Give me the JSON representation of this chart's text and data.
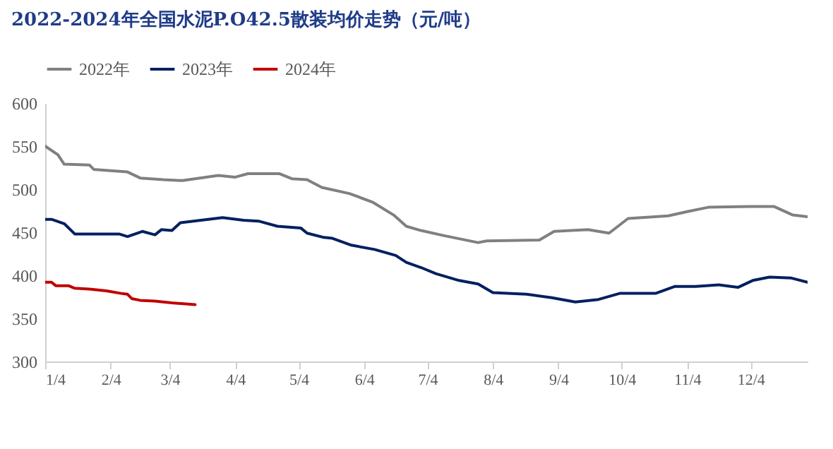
{
  "chart_data": {
    "type": "line",
    "title": "2022-2024年全国水泥P.O42.5散装均价走势（元/吨）",
    "ylim": [
      300,
      600
    ],
    "yticks": [
      300,
      350,
      400,
      450,
      500,
      550,
      600
    ],
    "xlim": [
      "--01-04",
      "--12-31"
    ],
    "xticks": [
      {
        "value": "--01-04",
        "label": "1/4"
      },
      {
        "value": "--02-04",
        "label": "2/4"
      },
      {
        "value": "--03-04",
        "label": "3/4"
      },
      {
        "value": "--04-04",
        "label": "4/4"
      },
      {
        "value": "--05-04",
        "label": "5/4"
      },
      {
        "value": "--06-04",
        "label": "6/4"
      },
      {
        "value": "--07-04",
        "label": "7/4"
      },
      {
        "value": "--08-04",
        "label": "8/4"
      },
      {
        "value": "--09-04",
        "label": "9/4"
      },
      {
        "value": "--10-04",
        "label": "10/4"
      },
      {
        "value": "--11-04",
        "label": "11/4"
      },
      {
        "value": "--12-04",
        "label": "12/4"
      }
    ],
    "grid": false,
    "legend": "top",
    "line_style": "solid",
    "marker": "none",
    "series": [
      {
        "name": "2022年",
        "color": "#808080",
        "x": [
          "--01-04",
          "--01-10",
          "--01-13",
          "--01-25",
          "--01-27",
          "--02-12",
          "--02-18",
          "--03-01",
          "--03-10",
          "--03-27",
          "--04-04",
          "--04-10",
          "--04-25",
          "--05-01",
          "--05-08",
          "--05-15",
          "--05-28",
          "--06-08",
          "--06-18",
          "--06-24",
          "--07-01",
          "--07-12",
          "--07-28",
          "--08-01",
          "--08-26",
          "--09-02",
          "--09-18",
          "--09-28",
          "--10-07",
          "--10-26",
          "--11-04",
          "--11-14",
          "--12-04",
          "--12-15",
          "--12-24",
          "--12-31"
        ],
        "values": [
          550,
          540,
          529,
          528,
          523,
          520,
          513,
          511,
          510,
          516,
          514,
          518,
          518,
          512,
          511,
          502,
          495,
          485,
          470,
          457,
          452,
          446,
          438,
          440,
          441,
          451,
          453,
          449,
          466,
          469,
          474,
          479,
          480,
          480,
          470,
          468
        ]
      },
      {
        "name": "2023年",
        "color": "#002060",
        "x": [
          "--01-04",
          "--01-07",
          "--01-13",
          "--01-18",
          "--02-08",
          "--02-12",
          "--02-19",
          "--02-25",
          "--02-28",
          "--03-05",
          "--03-09",
          "--03-29",
          "--04-08",
          "--04-15",
          "--04-24",
          "--05-05",
          "--05-08",
          "--05-16",
          "--05-20",
          "--05-29",
          "--06-09",
          "--06-19",
          "--06-24",
          "--07-01",
          "--07-08",
          "--07-19",
          "--07-28",
          "--08-04",
          "--08-20",
          "--09-01",
          "--09-12",
          "--09-23",
          "--10-03",
          "--10-20",
          "--10-29",
          "--11-08",
          "--11-19",
          "--11-28",
          "--12-05",
          "--12-13",
          "--12-23",
          "--12-31"
        ],
        "values": [
          465,
          465,
          460,
          448,
          448,
          445,
          451,
          447,
          453,
          452,
          461,
          467,
          464,
          463,
          457,
          455,
          449,
          444,
          443,
          435,
          430,
          423,
          415,
          409,
          402,
          394,
          390,
          380,
          378,
          374,
          369,
          372,
          379,
          379,
          387,
          387,
          389,
          386,
          394,
          398,
          397,
          392
        ]
      },
      {
        "name": "2024年",
        "color": "#c00000",
        "x": [
          "--01-04",
          "--01-07",
          "--01-09",
          "--01-15",
          "--01-18",
          "--01-25",
          "--02-02",
          "--02-09",
          "--02-12",
          "--02-14",
          "--02-18",
          "--02-25",
          "--03-05",
          "--03-16"
        ],
        "values": [
          392,
          392,
          388,
          388,
          385,
          384,
          382,
          379,
          378,
          373,
          371,
          370,
          368,
          366
        ]
      }
    ]
  }
}
